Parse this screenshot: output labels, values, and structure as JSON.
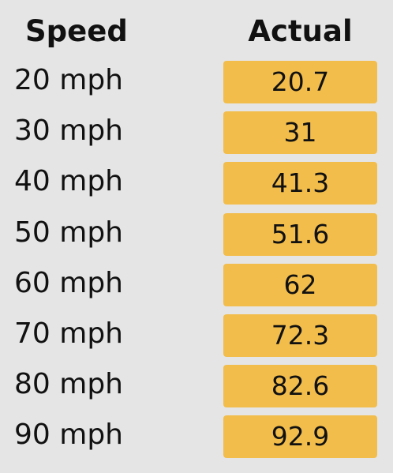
{
  "table": {
    "header": [
      "Speed",
      "Actual"
    ],
    "rows": [
      [
        "20 mph",
        "20.7"
      ],
      [
        "30 mph",
        "31"
      ],
      [
        "40 mph",
        "41.3"
      ],
      [
        "50 mph",
        "51.6"
      ],
      [
        "60 mph",
        "62"
      ],
      [
        "70 mph",
        "72.3"
      ],
      [
        "80 mph",
        "82.6"
      ],
      [
        "90 mph",
        "92.9"
      ]
    ]
  }
}
